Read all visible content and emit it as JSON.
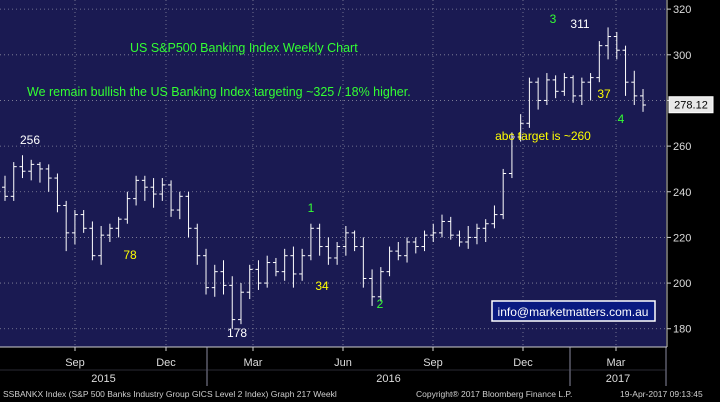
{
  "chart_data": {
    "type": "ohlc",
    "title": "US S&P500 Banking Index Weekly Chart",
    "commentary": "We remain bullish the US Banking Index targeting ~325 / 18% higher.",
    "ylim": [
      172,
      324
    ],
    "y_ticks": [
      180,
      200,
      220,
      240,
      260,
      280,
      300,
      320
    ],
    "x_month_ticks": [
      "Sep",
      "Dec",
      "Mar",
      "Jun",
      "Sep",
      "Dec",
      "Mar"
    ],
    "x_year_labels": [
      "2015",
      "2016",
      "2017"
    ],
    "last_price": "278.12",
    "source_email": "info@marketmatters.com.au",
    "annotations": [
      {
        "text": "256",
        "color": "#ffffff"
      },
      {
        "text": "78",
        "color": "#ffff00"
      },
      {
        "text": "178",
        "color": "#ffffff"
      },
      {
        "text": "1",
        "color": "#33ff33"
      },
      {
        "text": "34",
        "color": "#ffff00"
      },
      {
        "text": "2",
        "color": "#33ff33"
      },
      {
        "text": "3",
        "color": "#33ff33"
      },
      {
        "text": "311",
        "color": "#ffffff"
      },
      {
        "text": "37",
        "color": "#ffff00"
      },
      {
        "text": "4",
        "color": "#33ff33"
      },
      {
        "text": "abc target is ~260",
        "color": "#ffff00"
      }
    ],
    "series": [
      {
        "bars": [
          [
            242,
            247,
            236,
            238
          ],
          [
            238,
            253,
            236,
            251
          ],
          [
            251,
            256,
            246,
            249
          ],
          [
            249,
            254,
            245,
            252
          ],
          [
            252,
            253,
            244,
            250
          ],
          [
            250,
            252,
            240,
            246
          ],
          [
            246,
            248,
            231,
            234
          ],
          [
            234,
            236,
            214,
            222
          ],
          [
            222,
            232,
            217,
            230
          ],
          [
            230,
            232,
            222,
            224
          ],
          [
            224,
            227,
            210,
            212
          ],
          [
            212,
            225,
            208,
            221
          ],
          [
            221,
            226,
            218,
            224
          ],
          [
            224,
            229,
            220,
            228
          ],
          [
            228,
            240,
            226,
            237
          ],
          [
            237,
            247,
            234,
            245
          ],
          [
            245,
            247,
            236,
            242
          ],
          [
            242,
            246,
            233,
            239
          ],
          [
            239,
            246,
            236,
            243
          ],
          [
            243,
            245,
            229,
            232
          ],
          [
            232,
            240,
            228,
            238
          ],
          [
            238,
            240,
            220,
            224
          ],
          [
            224,
            226,
            208,
            212
          ],
          [
            212,
            215,
            195,
            198
          ],
          [
            198,
            208,
            194,
            205
          ],
          [
            205,
            210,
            195,
            199
          ],
          [
            199,
            203,
            180,
            184
          ],
          [
            184,
            200,
            182,
            196
          ],
          [
            196,
            208,
            193,
            206
          ],
          [
            206,
            210,
            197,
            200
          ],
          [
            200,
            212,
            198,
            209
          ],
          [
            209,
            211,
            203,
            205
          ],
          [
            205,
            215,
            201,
            212
          ],
          [
            212,
            216,
            198,
            204
          ],
          [
            204,
            215,
            201,
            212
          ],
          [
            212,
            226,
            210,
            224
          ],
          [
            224,
            226,
            212,
            216
          ],
          [
            216,
            220,
            208,
            211
          ],
          [
            211,
            218,
            208,
            216
          ],
          [
            216,
            225,
            212,
            222
          ],
          [
            222,
            223,
            214,
            216
          ],
          [
            216,
            220,
            198,
            202
          ],
          [
            202,
            206,
            190,
            194
          ],
          [
            194,
            207,
            192,
            205
          ],
          [
            205,
            216,
            203,
            214
          ],
          [
            214,
            218,
            210,
            212
          ],
          [
            212,
            220,
            209,
            218
          ],
          [
            218,
            220,
            213,
            216
          ],
          [
            216,
            223,
            214,
            221
          ],
          [
            221,
            226,
            218,
            222
          ],
          [
            222,
            230,
            220,
            227
          ],
          [
            227,
            229,
            219,
            221
          ],
          [
            221,
            223,
            216,
            218
          ],
          [
            218,
            225,
            215,
            220
          ],
          [
            220,
            226,
            217,
            224
          ],
          [
            224,
            228,
            218,
            226
          ],
          [
            226,
            234,
            224,
            230
          ],
          [
            230,
            250,
            228,
            248
          ],
          [
            248,
            266,
            246,
            264
          ],
          [
            264,
            274,
            262,
            270
          ],
          [
            270,
            290,
            268,
            288
          ],
          [
            288,
            290,
            276,
            280
          ],
          [
            280,
            292,
            278,
            289
          ],
          [
            289,
            291,
            281,
            284
          ],
          [
            284,
            292,
            282,
            290
          ],
          [
            290,
            291,
            279,
            282
          ],
          [
            282,
            290,
            278,
            288
          ],
          [
            288,
            292,
            280,
            290
          ],
          [
            290,
            306,
            288,
            304
          ],
          [
            304,
            312,
            298,
            308
          ],
          [
            308,
            310,
            298,
            302
          ],
          [
            302,
            304,
            282,
            288
          ],
          [
            288,
            293,
            278,
            282
          ],
          [
            282,
            285,
            275,
            278
          ]
        ]
      }
    ]
  }
}
